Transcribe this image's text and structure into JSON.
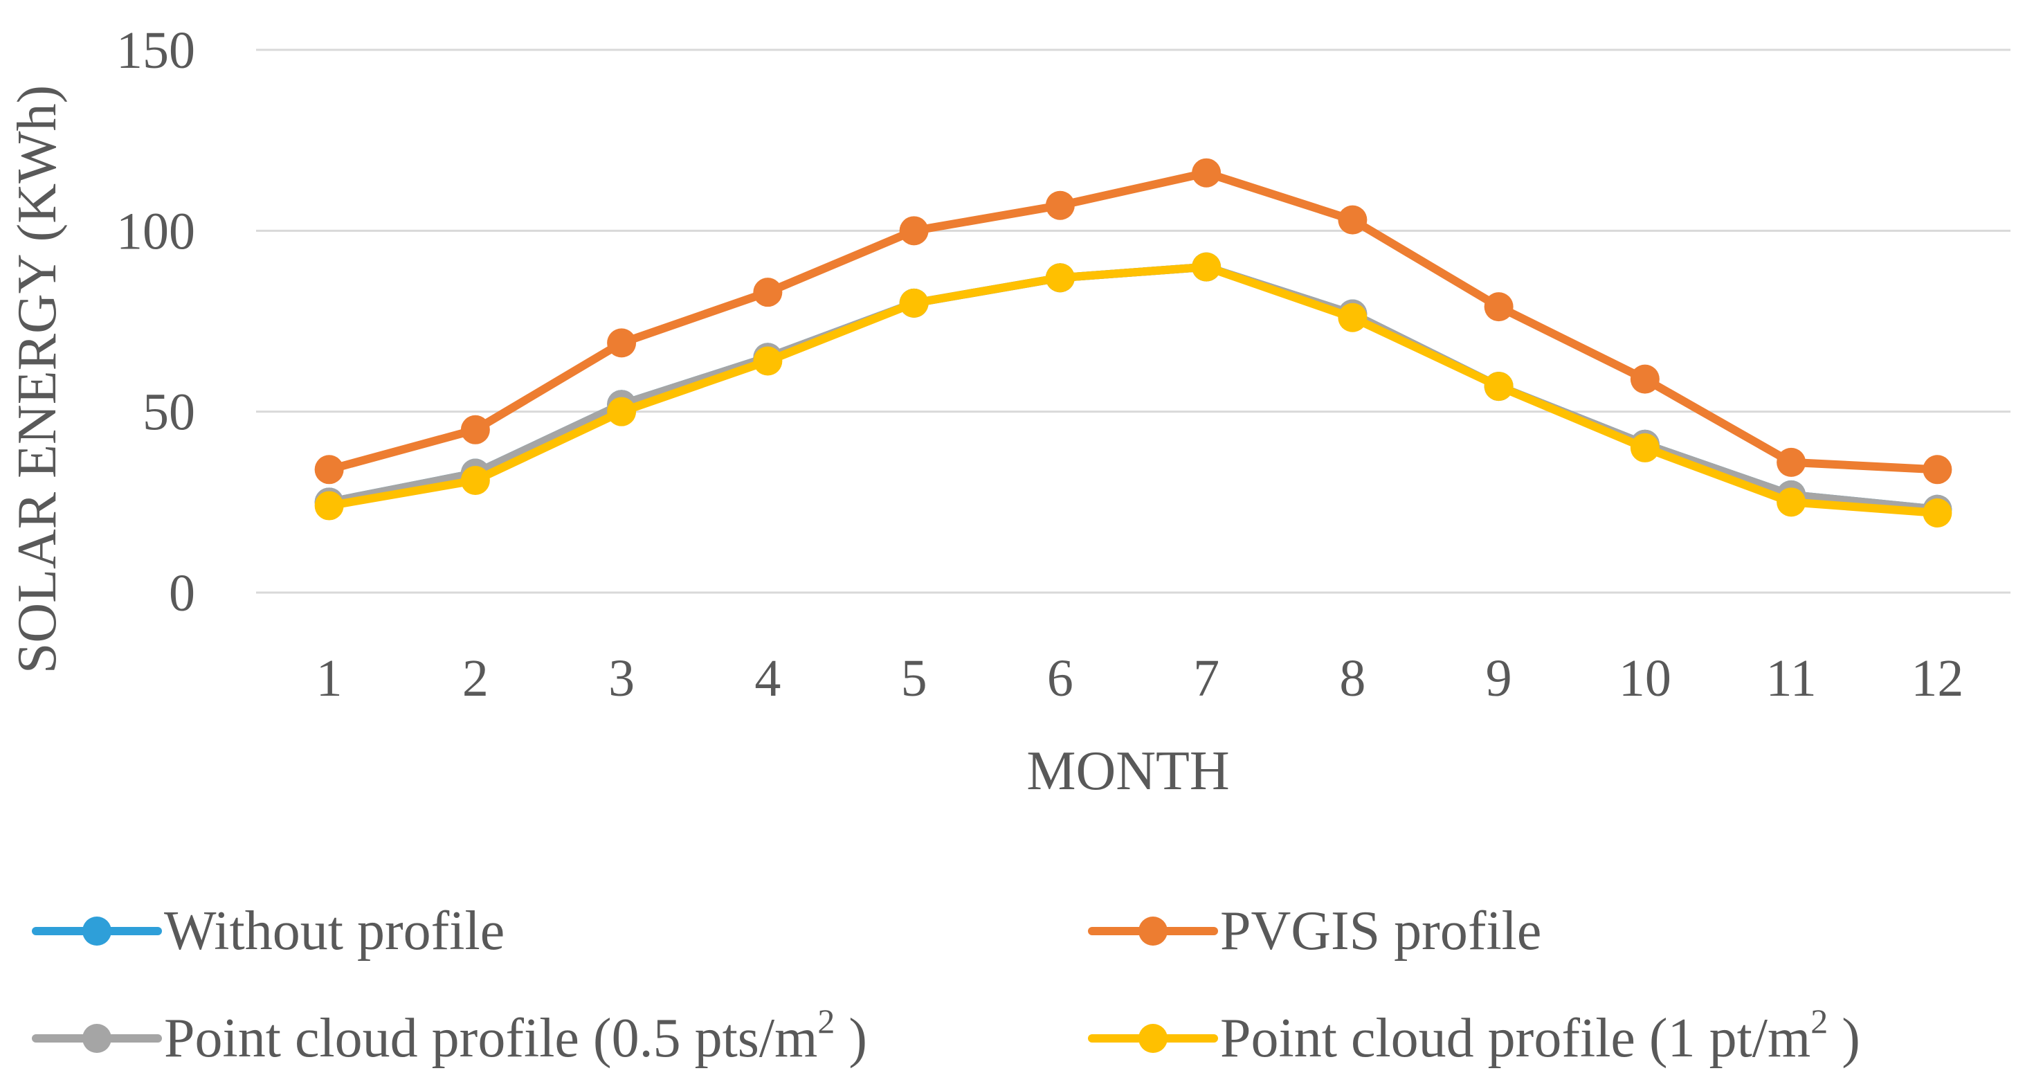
{
  "chart_data": {
    "type": "line",
    "xlabel": "MONTH",
    "ylabel": "SOLAR ENERGY (KWh)",
    "ylim": [
      0,
      150
    ],
    "yticks": [
      "0",
      "50",
      "100",
      "150"
    ],
    "categories": [
      "1",
      "2",
      "3",
      "4",
      "5",
      "6",
      "7",
      "8",
      "9",
      "10",
      "11",
      "12"
    ],
    "grid": true,
    "legend_position": "bottom",
    "series": [
      {
        "name": "Without profile",
        "color": "#2e9fd9",
        "values": [
          25,
          33,
          52,
          65,
          80,
          87,
          90,
          77,
          57,
          41,
          27,
          23
        ]
      },
      {
        "name": "PVGIS profile",
        "color": "#ed7d31",
        "values": [
          34,
          45,
          69,
          83,
          100,
          107,
          116,
          103,
          79,
          59,
          36,
          34
        ]
      },
      {
        "name": "Point cloud profile  (0.5 pts/m",
        "name_sup": "2",
        "name_suffix": " )",
        "color": "#a5a5a5",
        "values": [
          25,
          33,
          52,
          65,
          80,
          87,
          90,
          77,
          57,
          41,
          27,
          23
        ]
      },
      {
        "name": "Point cloud profile  (1 pt/m",
        "name_sup": "2",
        "name_suffix": " )",
        "color": "#ffc000",
        "values": [
          24,
          31,
          50,
          64,
          80,
          87,
          90,
          76,
          57,
          40,
          25,
          22
        ]
      }
    ]
  }
}
